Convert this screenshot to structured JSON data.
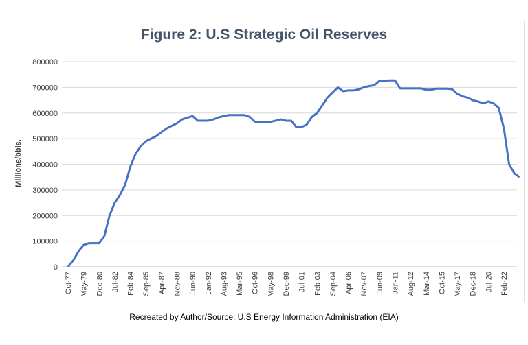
{
  "chart_data": {
    "type": "line",
    "title": "Figure 2: U.S Strategic Oil Reserves",
    "y_label": "Millions/bbls.",
    "source": "Recreated by Author/Source: U.S Energy Information Administration (EIA)",
    "categories": [
      "Oct-77",
      null,
      null,
      "May-79",
      null,
      null,
      "Dec-80",
      null,
      null,
      "Jul-82",
      null,
      null,
      "Feb-84",
      null,
      null,
      "Sep-85",
      null,
      null,
      "Apr-87",
      null,
      null,
      "Nov-88",
      null,
      null,
      "Jun-90",
      null,
      null,
      "Jan-92",
      null,
      null,
      "Aug-93",
      null,
      null,
      "Mar-95",
      null,
      null,
      "Oct-96",
      null,
      null,
      "May-98",
      null,
      null,
      "Dec-99",
      null,
      null,
      "Jul-01",
      null,
      null,
      "Feb-03",
      null,
      null,
      "Sep-04",
      null,
      null,
      "Apr-06",
      null,
      null,
      "Nov-07",
      null,
      null,
      "Jun-09",
      null,
      null,
      "Jan-11",
      null,
      null,
      "Aug-12",
      null,
      null,
      "Mar-14",
      null,
      null,
      "Oct-15",
      null,
      null,
      "May-17",
      null,
      null,
      "Dec-18",
      null,
      null,
      "Jul-20",
      null,
      null,
      "Feb-22",
      null,
      null,
      null
    ],
    "series": [
      {
        "name": "Strategic Oil Reserves",
        "color": "#4472c4",
        "values": [
          0,
          25000,
          60000,
          85000,
          92000,
          92000,
          92000,
          120000,
          200000,
          250000,
          280000,
          320000,
          390000,
          440000,
          470000,
          490000,
          500000,
          510000,
          525000,
          540000,
          550000,
          560000,
          575000,
          582000,
          588000,
          570000,
          570000,
          570000,
          575000,
          583000,
          588000,
          592000,
          592000,
          592000,
          592000,
          585000,
          566000,
          565000,
          565000,
          565000,
          570000,
          575000,
          570000,
          570000,
          545000,
          545000,
          555000,
          585000,
          600000,
          630000,
          660000,
          680000,
          700000,
          685000,
          688000,
          688000,
          692000,
          700000,
          705000,
          708000,
          725000,
          726000,
          727000,
          727000,
          696000,
          696000,
          696000,
          696000,
          696000,
          691000,
          691000,
          695000,
          695000,
          695000,
          693000,
          675000,
          665000,
          660000,
          650000,
          645000,
          638000,
          645000,
          638000,
          620000,
          540000,
          400000,
          365000,
          350000
        ]
      }
    ],
    "ylim": [
      0,
      800000
    ],
    "yticks": [
      0,
      100000,
      200000,
      300000,
      400000,
      500000,
      600000,
      700000,
      800000
    ],
    "grid": true
  }
}
